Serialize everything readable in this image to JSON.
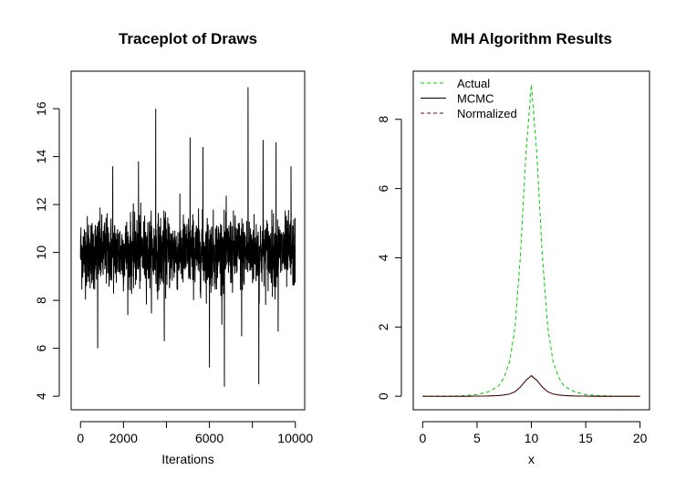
{
  "chart_data": [
    {
      "type": "line",
      "title": "Traceplot of Draws",
      "xlabel": "Iterations",
      "ylabel": "",
      "xlim": [
        0,
        10000
      ],
      "ylim": [
        4,
        17
      ],
      "x_ticks": [
        0,
        2000,
        4000,
        6000,
        8000,
        10000
      ],
      "x_tick_labels": [
        "0",
        "2000",
        "",
        "6000",
        "",
        "10000"
      ],
      "y_ticks": [
        4,
        6,
        8,
        10,
        12,
        14,
        16
      ],
      "y_tick_labels": [
        "4",
        "6",
        "8",
        "10",
        "12",
        "14",
        "16"
      ],
      "series": [
        {
          "name": "",
          "color": "#000000",
          "summary": {
            "n": 10000,
            "center": 10.0,
            "typical_range": [
              8.5,
              11.5
            ],
            "min": 4.4,
            "max": 16.9
          },
          "spikes": [
            {
              "x": 1500,
              "y": 13.6
            },
            {
              "x": 2700,
              "y": 13.8
            },
            {
              "x": 3500,
              "y": 16.0
            },
            {
              "x": 5100,
              "y": 14.8
            },
            {
              "x": 5700,
              "y": 14.4
            },
            {
              "x": 7800,
              "y": 16.9
            },
            {
              "x": 8500,
              "y": 14.7
            },
            {
              "x": 9100,
              "y": 14.6
            },
            {
              "x": 9800,
              "y": 13.6
            },
            {
              "x": 800,
              "y": 6.0
            },
            {
              "x": 3900,
              "y": 6.3
            },
            {
              "x": 6000,
              "y": 5.2
            },
            {
              "x": 6700,
              "y": 4.4
            },
            {
              "x": 7500,
              "y": 6.5
            },
            {
              "x": 8300,
              "y": 4.5
            },
            {
              "x": 9200,
              "y": 6.7
            }
          ]
        }
      ]
    },
    {
      "type": "line",
      "title": "MH Algorithm Results",
      "xlabel": "x",
      "ylabel": "",
      "xlim": [
        0,
        20
      ],
      "ylim": [
        0,
        9
      ],
      "x_ticks": [
        0,
        5,
        10,
        15,
        20
      ],
      "x_tick_labels": [
        "0",
        "5",
        "10",
        "15",
        "20"
      ],
      "y_ticks": [
        0,
        2,
        4,
        6,
        8
      ],
      "y_tick_labels": [
        "0",
        "2",
        "4",
        "6",
        "8"
      ],
      "legend": {
        "placement": "top-left",
        "entries": [
          "Actual",
          "MCMC",
          "Normalized"
        ]
      },
      "series": [
        {
          "name": "Actual",
          "color": "#00cc00",
          "style": "dashed",
          "x": [
            0,
            2,
            4,
            5,
            6,
            7,
            7.5,
            8,
            8.5,
            9,
            9.5,
            10,
            10.5,
            11,
            11.5,
            12,
            12.5,
            13,
            14,
            15,
            16,
            18,
            20
          ],
          "y": [
            0,
            0,
            0.02,
            0.05,
            0.12,
            0.3,
            0.55,
            1.0,
            2.0,
            4.1,
            7.0,
            9.0,
            7.0,
            4.1,
            2.0,
            1.0,
            0.55,
            0.3,
            0.12,
            0.05,
            0.02,
            0,
            0
          ]
        },
        {
          "name": "MCMC",
          "color": "#000000",
          "style": "solid",
          "x": [
            0,
            2,
            4,
            5,
            6,
            7,
            7.5,
            8,
            8.5,
            9,
            9.5,
            10,
            10.5,
            11,
            11.5,
            12,
            12.5,
            13,
            14,
            15,
            16,
            18,
            20
          ],
          "y": [
            0,
            0,
            0,
            0.003,
            0.008,
            0.02,
            0.035,
            0.065,
            0.13,
            0.27,
            0.46,
            0.59,
            0.46,
            0.27,
            0.13,
            0.065,
            0.035,
            0.02,
            0.008,
            0.003,
            0,
            0,
            0
          ]
        },
        {
          "name": "Normalized",
          "color": "#8b0000",
          "style": "dashed",
          "x": [
            0,
            2,
            4,
            5,
            6,
            7,
            7.5,
            8,
            8.5,
            9,
            9.5,
            10,
            10.5,
            11,
            11.5,
            12,
            12.5,
            13,
            14,
            15,
            16,
            18,
            20
          ],
          "y": [
            0,
            0,
            0,
            0.003,
            0.008,
            0.02,
            0.036,
            0.066,
            0.13,
            0.27,
            0.46,
            0.6,
            0.46,
            0.27,
            0.13,
            0.066,
            0.036,
            0.02,
            0.008,
            0.003,
            0,
            0,
            0
          ]
        }
      ]
    }
  ]
}
